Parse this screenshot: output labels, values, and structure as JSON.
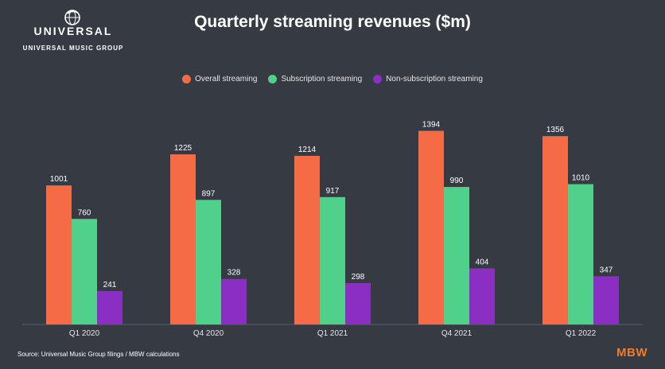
{
  "logo": {
    "wordmark": "UNIVERSAL",
    "subtitle": "UNIVERSAL MUSIC GROUP",
    "icon": "globe-icon"
  },
  "footer": {
    "source": "Source: Universal Music Group filings / MBW calculations",
    "brand": "MBW"
  },
  "colors": {
    "background": "#363a42",
    "overall": "#f46b45",
    "subscription": "#4fd18b",
    "non_subscription": "#8a2fc1",
    "brand": "#f47a2b"
  },
  "chart_data": {
    "type": "bar",
    "title": "Quarterly streaming revenues ($m)",
    "xlabel": "",
    "ylabel": "",
    "categories": [
      "Q1 2020",
      "Q4 2020",
      "Q1 2021",
      "Q4 2021",
      "Q1 2022"
    ],
    "series": [
      {
        "name": "Overall streaming",
        "color": "#f46b45",
        "values": [
          1001,
          1225,
          1214,
          1394,
          1356
        ]
      },
      {
        "name": "Subscription streaming",
        "color": "#4fd18b",
        "values": [
          760,
          897,
          917,
          990,
          1010
        ]
      },
      {
        "name": "Non-subscription streaming",
        "color": "#8a2fc1",
        "values": [
          241,
          328,
          298,
          404,
          347
        ]
      }
    ],
    "ylim": [
      0,
      1500
    ],
    "grid": false,
    "legend_position": "top-center",
    "data_labels": true
  }
}
